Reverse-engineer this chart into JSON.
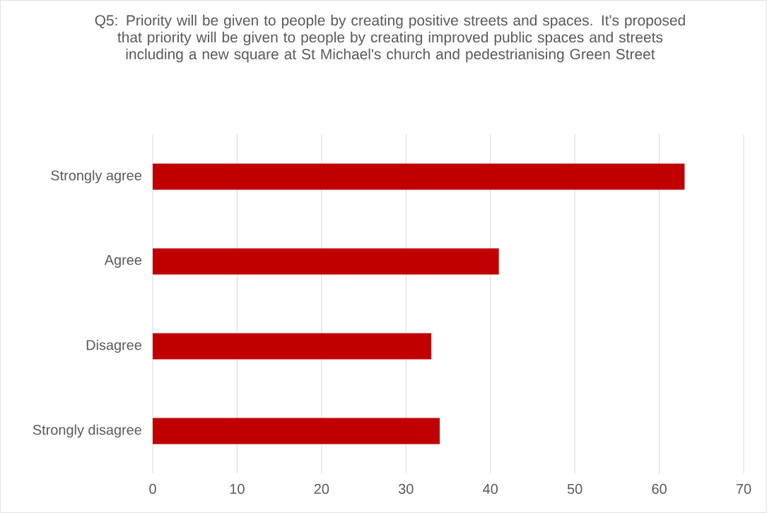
{
  "chart_data": {
    "type": "bar",
    "orientation": "horizontal",
    "title": "Q5: Priority will be given to people by creating positive streets and spaces. It's proposed that priority will be given to people by creating improved public spaces and streets including a new square at St Michael's church and pedestrianising Green Street",
    "categories": [
      "Strongly agree",
      "Agree",
      "Disagree",
      "Strongly disagree"
    ],
    "values": [
      63,
      41,
      33,
      34
    ],
    "color": "#c00000",
    "xlim": [
      0,
      70
    ],
    "xticks": [
      0,
      10,
      20,
      30,
      40,
      50,
      60,
      70
    ],
    "grid": "x"
  }
}
